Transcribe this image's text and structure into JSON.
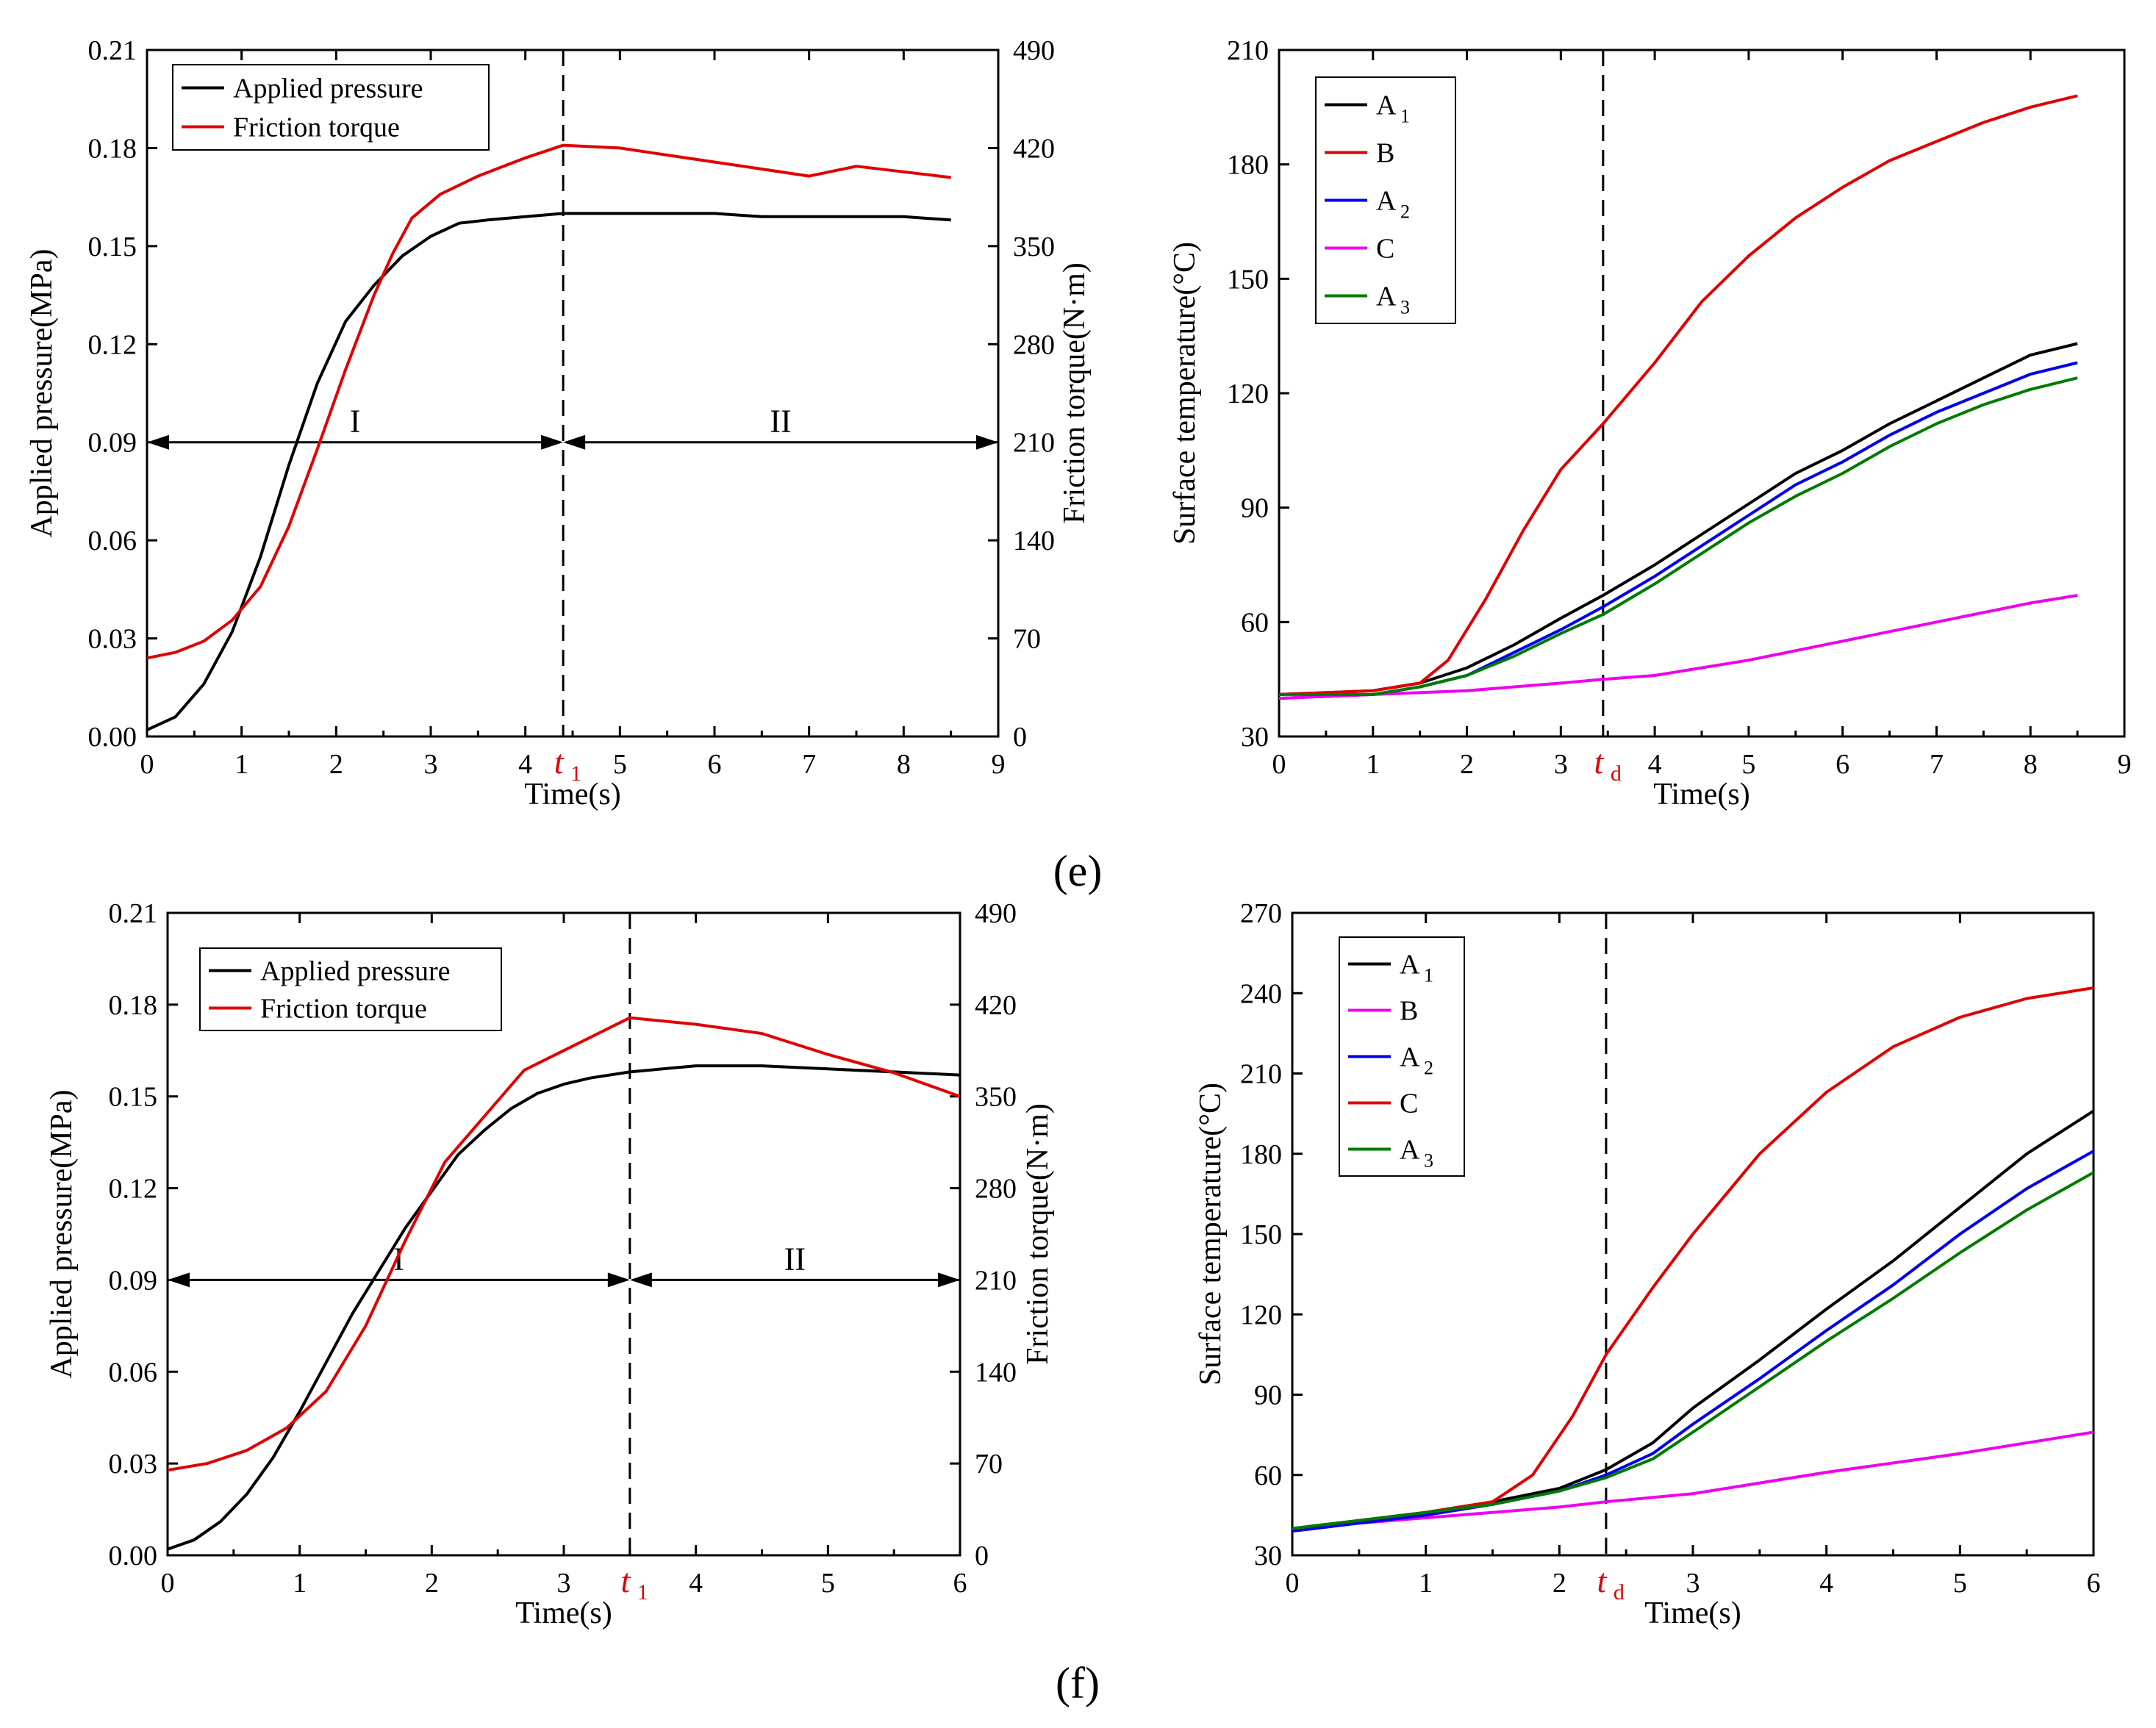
{
  "panel_labels": {
    "e": "(e)",
    "f": "(f)"
  },
  "chart_data": [
    {
      "id": "e-left",
      "type": "line",
      "xlabel": "Time(s)",
      "ylabel": "Applied pressure(MPa)",
      "y2label": "Friction torque(N·m)",
      "xlim": [
        0,
        9
      ],
      "ylim": [
        0,
        0.21
      ],
      "y2lim": [
        0,
        490
      ],
      "xticks": [
        0,
        1,
        2,
        3,
        4,
        5,
        6,
        7,
        8,
        9
      ],
      "yticks": [
        "0.00",
        "0.03",
        "0.06",
        "0.09",
        "0.12",
        "0.15",
        "0.18",
        "0.21"
      ],
      "y2ticks": [
        "0",
        "70",
        "140",
        "210",
        "280",
        "350",
        "420",
        "490"
      ],
      "marker": {
        "x": 4.4,
        "label": "t",
        "sub": "1"
      },
      "regions": [
        {
          "label": "I",
          "from": 0,
          "to": 4.4,
          "y": 0.09
        },
        {
          "label": "II",
          "from": 4.4,
          "to": 9,
          "y": 0.09
        }
      ],
      "legend": {
        "position": "top-left"
      },
      "series": [
        {
          "name": "Applied pressure",
          "color": "#000000",
          "axis": "left",
          "x": [
            0,
            0.3,
            0.6,
            0.9,
            1.2,
            1.5,
            1.8,
            2.1,
            2.4,
            2.7,
            3.0,
            3.3,
            3.6,
            4.0,
            4.4,
            5.0,
            5.5,
            6.0,
            6.5,
            7.0,
            7.5,
            8.0,
            8.5
          ],
          "y": [
            0.002,
            0.006,
            0.016,
            0.032,
            0.055,
            0.083,
            0.108,
            0.127,
            0.138,
            0.147,
            0.153,
            0.157,
            0.158,
            0.159,
            0.16,
            0.16,
            0.16,
            0.16,
            0.159,
            0.159,
            0.159,
            0.159,
            0.158
          ]
        },
        {
          "name": "Friction torque",
          "color": "#e00000",
          "axis": "right",
          "x": [
            0,
            0.3,
            0.6,
            0.9,
            1.2,
            1.5,
            1.8,
            2.1,
            2.4,
            2.6,
            2.8,
            3.1,
            3.5,
            4.0,
            4.4,
            5.0,
            5.5,
            6.0,
            6.5,
            7.0,
            7.5,
            8.0,
            8.5
          ],
          "y": [
            56,
            60,
            68,
            83,
            107,
            150,
            205,
            262,
            315,
            345,
            370,
            387,
            400,
            413,
            422,
            420,
            415,
            410,
            405,
            400,
            407,
            403,
            399
          ]
        }
      ]
    },
    {
      "id": "e-right",
      "type": "line",
      "xlabel": "Time(s)",
      "ylabel": "Surface temperature(°C)",
      "xlim": [
        0,
        9
      ],
      "ylim": [
        30,
        210
      ],
      "xticks": [
        0,
        1,
        2,
        3,
        4,
        5,
        6,
        7,
        8,
        9
      ],
      "yticks": [
        "30",
        "60",
        "90",
        "120",
        "150",
        "180",
        "210"
      ],
      "marker": {
        "x": 3.45,
        "label": "t",
        "sub": "d"
      },
      "legend": {
        "position": "top-left"
      },
      "series": [
        {
          "name": "A",
          "sub": "1",
          "color": "#000000",
          "x": [
            0,
            1,
            1.5,
            2,
            2.5,
            3,
            3.45,
            4,
            4.5,
            5,
            5.5,
            6,
            6.5,
            7,
            7.5,
            8,
            8.5
          ],
          "y": [
            41,
            42,
            44,
            48,
            54,
            61,
            67,
            75,
            83,
            91,
            99,
            105,
            112,
            118,
            124,
            130,
            133
          ]
        },
        {
          "name": "B",
          "color": "#e00000",
          "x": [
            0,
            1,
            1.5,
            1.8,
            2.2,
            2.6,
            3.0,
            3.45,
            4,
            4.5,
            5,
            5.5,
            6,
            6.5,
            7,
            7.5,
            8,
            8.5
          ],
          "y": [
            41,
            42,
            44,
            50,
            66,
            84,
            100,
            112,
            128,
            144,
            156,
            166,
            174,
            181,
            186,
            191,
            195,
            198
          ]
        },
        {
          "name": "A",
          "sub": "2",
          "color": "#0000ee",
          "x": [
            0,
            1,
            1.5,
            2,
            2.5,
            3,
            3.45,
            4,
            4.5,
            5,
            5.5,
            6,
            6.5,
            7,
            7.5,
            8,
            8.5
          ],
          "y": [
            40,
            41,
            43,
            46,
            52,
            58,
            64,
            72,
            80,
            88,
            96,
            102,
            109,
            115,
            120,
            125,
            128
          ]
        },
        {
          "name": "C",
          "color": "#ee00ee",
          "x": [
            0,
            1,
            2,
            3,
            3.45,
            4,
            5,
            6,
            7,
            8,
            8.5
          ],
          "y": [
            40,
            41,
            42,
            44,
            45,
            46,
            50,
            55,
            60,
            65,
            67
          ]
        },
        {
          "name": "A",
          "sub": "3",
          "color": "#007a00",
          "x": [
            0,
            1,
            1.5,
            2,
            2.5,
            3,
            3.45,
            4,
            4.5,
            5,
            5.5,
            6,
            6.5,
            7,
            7.5,
            8,
            8.5
          ],
          "y": [
            41,
            41,
            43,
            46,
            51,
            57,
            62,
            70,
            78,
            86,
            93,
            99,
            106,
            112,
            117,
            121,
            124
          ]
        }
      ]
    },
    {
      "id": "f-left",
      "type": "line",
      "xlabel": "Time(s)",
      "ylabel": "Applied pressure(MPa)",
      "y2label": "Friction torque(N·m)",
      "xlim": [
        0,
        6
      ],
      "ylim": [
        0,
        0.21
      ],
      "y2lim": [
        0,
        490
      ],
      "xticks": [
        0,
        1,
        2,
        3,
        4,
        5,
        6
      ],
      "yticks": [
        "0.00",
        "0.03",
        "0.06",
        "0.09",
        "0.12",
        "0.15",
        "0.18",
        "0.21"
      ],
      "y2ticks": [
        "0",
        "70",
        "140",
        "210",
        "280",
        "350",
        "420",
        "490"
      ],
      "marker": {
        "x": 3.5,
        "label": "t",
        "sub": "1"
      },
      "regions": [
        {
          "label": "I",
          "from": 0,
          "to": 3.5,
          "y": 0.09
        },
        {
          "label": "II",
          "from": 3.5,
          "to": 6,
          "y": 0.09
        }
      ],
      "legend": {
        "position": "top-left"
      },
      "series": [
        {
          "name": "Applied pressure",
          "color": "#000000",
          "axis": "left",
          "x": [
            0,
            0.2,
            0.4,
            0.6,
            0.8,
            1.0,
            1.2,
            1.4,
            1.6,
            1.8,
            2.0,
            2.2,
            2.4,
            2.6,
            2.8,
            3.0,
            3.2,
            3.5,
            4.0,
            4.5,
            5.0,
            5.5,
            6.0
          ],
          "y": [
            0.002,
            0.005,
            0.011,
            0.02,
            0.032,
            0.047,
            0.063,
            0.079,
            0.093,
            0.107,
            0.119,
            0.131,
            0.139,
            0.146,
            0.151,
            0.154,
            0.156,
            0.158,
            0.16,
            0.16,
            0.159,
            0.158,
            0.157
          ]
        },
        {
          "name": "Friction torque",
          "color": "#e00000",
          "axis": "right",
          "x": [
            0,
            0.3,
            0.6,
            0.9,
            1.2,
            1.5,
            1.8,
            2.1,
            2.4,
            2.7,
            3.0,
            3.3,
            3.5,
            4.0,
            4.5,
            5.0,
            5.5,
            6.0
          ],
          "y": [
            65,
            70,
            80,
            97,
            125,
            175,
            240,
            300,
            335,
            370,
            385,
            400,
            410,
            405,
            398,
            382,
            368,
            350
          ]
        }
      ]
    },
    {
      "id": "f-right",
      "type": "line",
      "xlabel": "Time(s)",
      "ylabel": "Surface temperature(°C)",
      "xlim": [
        0,
        6
      ],
      "ylim": [
        30,
        270
      ],
      "xticks": [
        0,
        1,
        2,
        3,
        4,
        5,
        6
      ],
      "yticks": [
        "30",
        "60",
        "90",
        "120",
        "150",
        "180",
        "210",
        "240",
        "270"
      ],
      "marker": {
        "x": 2.35,
        "label": "t",
        "sub": "d"
      },
      "legend": {
        "position": "top-left"
      },
      "series": [
        {
          "name": "A",
          "sub": "1",
          "color": "#000000",
          "x": [
            0,
            0.5,
            1,
            1.5,
            2,
            2.35,
            2.7,
            3,
            3.5,
            4,
            4.5,
            5,
            5.5,
            6
          ],
          "y": [
            40,
            43,
            46,
            50,
            55,
            62,
            72,
            85,
            103,
            122,
            140,
            160,
            180,
            196
          ]
        },
        {
          "name": "B",
          "color": "#ee00ee",
          "x": [
            0,
            1,
            2,
            2.35,
            3,
            4,
            5,
            6
          ],
          "y": [
            40,
            44,
            48,
            50,
            53,
            61,
            68,
            76
          ]
        },
        {
          "name": "A",
          "sub": "2",
          "color": "#0000ee",
          "x": [
            0,
            0.5,
            1,
            1.5,
            2,
            2.35,
            2.7,
            3,
            3.5,
            4,
            4.5,
            5,
            5.5,
            6
          ],
          "y": [
            39,
            42,
            45,
            49,
            54,
            60,
            68,
            79,
            96,
            114,
            131,
            150,
            167,
            181
          ]
        },
        {
          "name": "C",
          "color": "#e00000",
          "x": [
            0,
            0.5,
            1,
            1.5,
            1.8,
            2.1,
            2.35,
            2.7,
            3,
            3.5,
            4,
            4.5,
            5,
            5.5,
            6
          ],
          "y": [
            40,
            43,
            46,
            50,
            60,
            82,
            105,
            130,
            150,
            180,
            203,
            220,
            231,
            238,
            242
          ]
        },
        {
          "name": "A",
          "sub": "3",
          "color": "#007a00",
          "x": [
            0,
            0.5,
            1,
            1.5,
            2,
            2.35,
            2.7,
            3,
            3.5,
            4,
            4.5,
            5,
            5.5,
            6
          ],
          "y": [
            40,
            43,
            46,
            49,
            54,
            59,
            66,
            76,
            93,
            110,
            126,
            143,
            159,
            173
          ]
        }
      ]
    }
  ]
}
